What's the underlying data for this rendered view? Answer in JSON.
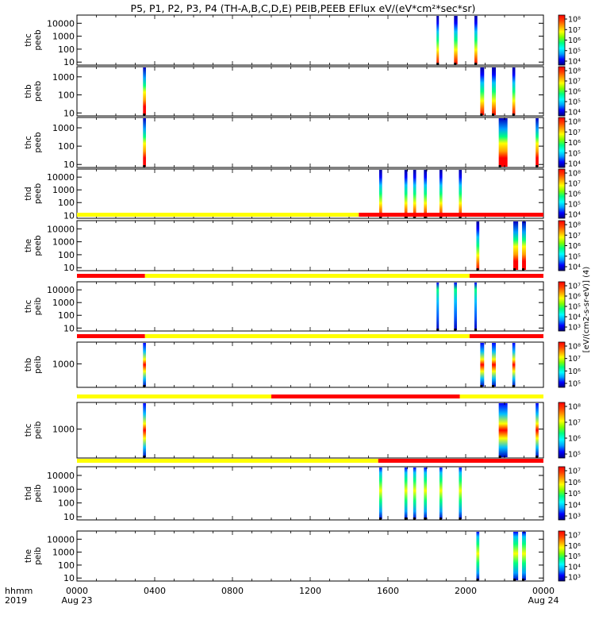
{
  "chart_data": {
    "type": "heatmap",
    "title": "P5, P1, P2, P3, P4 (TH-A,B,C,D,E) PEIB,PEEB EFlux eV/(eV*cm²*sec*sr)",
    "x_axis": {
      "range_hours": [
        0,
        24
      ],
      "tick_labels": [
        "0000",
        "0400",
        "0800",
        "1200",
        "1600",
        "2000",
        "0000"
      ],
      "tick_hours": [
        0,
        4,
        8,
        12,
        16,
        20,
        24
      ],
      "date_labels": [
        "Aug 23",
        "Aug 24"
      ],
      "row_labels": [
        "hhmm",
        "2019"
      ]
    },
    "colorbar_label": "[eV/(cm2-s-sr-eV)] (4)",
    "colormap": [
      "#000080",
      "#0000ff",
      "#00a0ff",
      "#00ffff",
      "#00ff80",
      "#80ff00",
      "#ffff00",
      "#ffa000",
      "#ff4000",
      "#ff0000"
    ],
    "mode_bar_colors": {
      "slow": "#ffff00",
      "fast": "#ff0000"
    },
    "panels": [
      {
        "ylabel": [
          "thc",
          "peeb"
        ],
        "scale": "log",
        "yticks": [
          "10",
          "100",
          "1000",
          "10000"
        ],
        "cbar_ticks": [
          "10⁴",
          "10⁵",
          "10⁶",
          "10⁷",
          "10⁸"
        ],
        "mode_bar": null,
        "bursts": [
          {
            "start": 18.5,
            "end": 18.62,
            "pattern": "electron"
          },
          {
            "start": 19.4,
            "end": 19.58,
            "pattern": "electron"
          },
          {
            "start": 20.45,
            "end": 20.6,
            "pattern": "electron"
          }
        ]
      },
      {
        "ylabel": [
          "thb",
          "peeb"
        ],
        "scale": "log",
        "yticks": [
          "10",
          "100",
          "1000"
        ],
        "cbar_ticks": [
          "10⁴",
          "10⁵",
          "10⁶",
          "10⁷",
          "10⁸"
        ],
        "mode_bar": null,
        "bursts": [
          {
            "start": 3.4,
            "end": 3.55,
            "pattern": "electron_low"
          },
          {
            "start": 20.75,
            "end": 20.95,
            "pattern": "electron"
          },
          {
            "start": 21.35,
            "end": 21.55,
            "pattern": "electron"
          },
          {
            "start": 22.4,
            "end": 22.55,
            "pattern": "electron"
          }
        ]
      },
      {
        "ylabel": [
          "thc",
          "peeb"
        ],
        "scale": "log",
        "yticks": [
          "10",
          "100",
          "1000"
        ],
        "cbar_ticks": [
          "10⁴",
          "10⁵",
          "10⁶",
          "10⁷",
          "10⁸"
        ],
        "mode_bar": null,
        "bursts": [
          {
            "start": 3.4,
            "end": 3.55,
            "pattern": "electron_low"
          },
          {
            "start": 21.7,
            "end": 22.15,
            "pattern": "electron_low"
          },
          {
            "start": 23.6,
            "end": 23.75,
            "pattern": "electron_low"
          }
        ]
      },
      {
        "ylabel": [
          "thd",
          "peeb"
        ],
        "scale": "log",
        "yticks": [
          "10",
          "100",
          "1000",
          "10000"
        ],
        "cbar_ticks": [
          "10⁴",
          "10⁵",
          "10⁶",
          "10⁷",
          "10⁸"
        ],
        "mode_bar": null,
        "bursts": [
          {
            "start": 15.55,
            "end": 15.7,
            "pattern": "electron"
          },
          {
            "start": 16.85,
            "end": 17.0,
            "pattern": "electron"
          },
          {
            "start": 17.3,
            "end": 17.45,
            "pattern": "electron"
          },
          {
            "start": 17.85,
            "end": 18.0,
            "pattern": "electron"
          },
          {
            "start": 18.65,
            "end": 18.8,
            "pattern": "electron"
          },
          {
            "start": 19.65,
            "end": 19.8,
            "pattern": "electron"
          }
        ]
      },
      {
        "ylabel": [
          "the",
          "peeb"
        ],
        "scale": "log",
        "yticks": [
          "10",
          "100",
          "1000",
          "10000"
        ],
        "cbar_ticks": [
          "10⁴",
          "10⁵",
          "10⁶",
          "10⁷",
          "10⁸"
        ],
        "mode_bar": {
          "segments": [
            {
              "start": 0,
              "end": 14.5,
              "mode": "slow"
            },
            {
              "start": 14.5,
              "end": 24,
              "mode": "fast"
            }
          ]
        },
        "bursts": [
          {
            "start": 20.55,
            "end": 20.7,
            "pattern": "electron"
          },
          {
            "start": 22.45,
            "end": 22.7,
            "pattern": "electron_low"
          },
          {
            "start": 22.9,
            "end": 23.1,
            "pattern": "electron_low"
          }
        ]
      },
      {
        "ylabel": [
          "thc",
          "peib"
        ],
        "scale": "log",
        "yticks": [
          "10",
          "100",
          "1000",
          "10000"
        ],
        "cbar_ticks": [
          "10³",
          "10⁴",
          "10⁵",
          "10⁶",
          "10⁷"
        ],
        "mode_bar": {
          "segments": [
            {
              "start": 0,
              "end": 3.5,
              "mode": "fast"
            },
            {
              "start": 3.5,
              "end": 20.2,
              "mode": "slow"
            },
            {
              "start": 20.2,
              "end": 24,
              "mode": "fast"
            }
          ]
        },
        "bursts": [
          {
            "start": 18.5,
            "end": 18.6,
            "pattern": "ion_blue"
          },
          {
            "start": 19.4,
            "end": 19.55,
            "pattern": "ion_blue"
          },
          {
            "start": 20.45,
            "end": 20.55,
            "pattern": "ion_blue"
          }
        ]
      },
      {
        "ylabel": [
          "thb",
          "peib"
        ],
        "scale": "log",
        "yticks": [
          "1000"
        ],
        "cbar_ticks": [
          "10⁵",
          "10⁶",
          "10⁷",
          "10⁸"
        ],
        "mode_bar": {
          "segments": [
            {
              "start": 0,
              "end": 3.5,
              "mode": "fast"
            },
            {
              "start": 3.5,
              "end": 20.2,
              "mode": "slow"
            },
            {
              "start": 20.2,
              "end": 24,
              "mode": "fast"
            }
          ]
        },
        "bursts": [
          {
            "start": 3.4,
            "end": 3.55,
            "pattern": "ion_mid"
          },
          {
            "start": 20.75,
            "end": 20.95,
            "pattern": "ion_mid"
          },
          {
            "start": 21.35,
            "end": 21.55,
            "pattern": "ion_mid"
          },
          {
            "start": 22.4,
            "end": 22.55,
            "pattern": "ion_mid"
          }
        ]
      },
      {
        "ylabel": [
          "thc",
          "peib"
        ],
        "scale": "log",
        "yticks": [
          "1000"
        ],
        "cbar_ticks": [
          "10⁵",
          "10⁶",
          "10⁷",
          "10⁸"
        ],
        "mode_bar": {
          "segments": [
            {
              "start": 0,
              "end": 10.0,
              "mode": "slow"
            },
            {
              "start": 10.0,
              "end": 19.7,
              "mode": "fast"
            },
            {
              "start": 19.7,
              "end": 24,
              "mode": "slow"
            }
          ]
        },
        "bursts": [
          {
            "start": 3.4,
            "end": 3.55,
            "pattern": "ion_mid"
          },
          {
            "start": 21.7,
            "end": 22.15,
            "pattern": "ion_mid"
          },
          {
            "start": 23.6,
            "end": 23.75,
            "pattern": "ion_mid"
          }
        ]
      },
      {
        "ylabel": [
          "thd",
          "peib"
        ],
        "scale": "log",
        "yticks": [
          "10",
          "100",
          "1000",
          "10000"
        ],
        "cbar_ticks": [
          "10³",
          "10⁴",
          "10⁵",
          "10⁶",
          "10⁷"
        ],
        "mode_bar": {
          "segments": [
            {
              "start": 0,
              "end": 15.5,
              "mode": "slow"
            },
            {
              "start": 15.5,
              "end": 24,
              "mode": "fast"
            }
          ]
        },
        "bursts": [
          {
            "start": 15.55,
            "end": 15.7,
            "pattern": "ion"
          },
          {
            "start": 16.85,
            "end": 17.0,
            "pattern": "ion"
          },
          {
            "start": 17.3,
            "end": 17.45,
            "pattern": "ion"
          },
          {
            "start": 17.85,
            "end": 18.0,
            "pattern": "ion"
          },
          {
            "start": 18.65,
            "end": 18.8,
            "pattern": "ion"
          },
          {
            "start": 19.65,
            "end": 19.8,
            "pattern": "ion"
          }
        ]
      },
      {
        "ylabel": [
          "the",
          "peib"
        ],
        "scale": "log",
        "yticks": [
          "10",
          "100",
          "1000",
          "10000"
        ],
        "cbar_ticks": [
          "10³",
          "10⁴",
          "10⁵",
          "10⁶",
          "10⁷"
        ],
        "mode_bar": null,
        "bursts": [
          {
            "start": 20.55,
            "end": 20.7,
            "pattern": "ion"
          },
          {
            "start": 22.45,
            "end": 22.7,
            "pattern": "ion"
          },
          {
            "start": 22.9,
            "end": 23.1,
            "pattern": "ion"
          }
        ]
      }
    ]
  }
}
